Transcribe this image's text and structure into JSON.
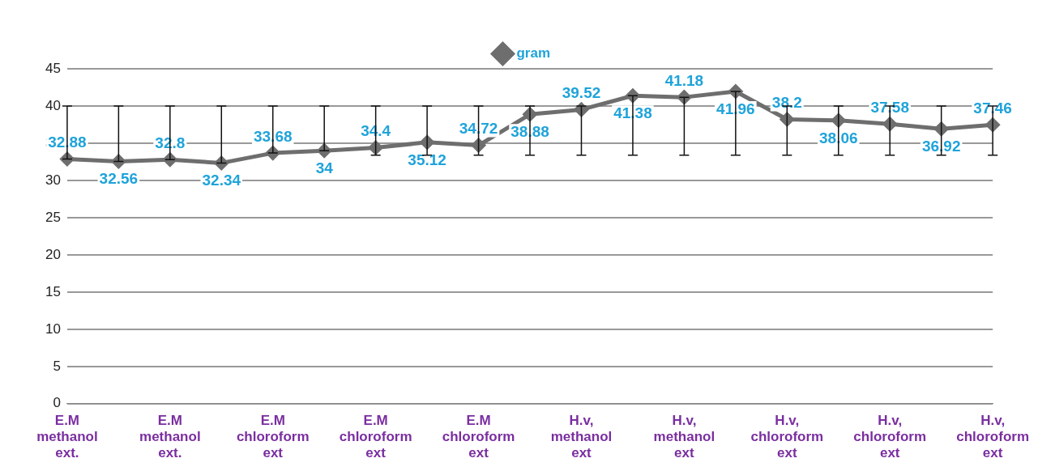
{
  "chart_data": {
    "type": "line",
    "categories": [
      "E.M methanol ext.",
      null,
      "E.M methanol ext.",
      null,
      "E.M chloroform ext",
      null,
      "E.M chloroform ext",
      null,
      "E.M chloroform ext",
      null,
      "H.v, methanol ext",
      null,
      "H.v, methanol ext",
      null,
      "H.v, chloroform ext",
      null,
      "H.v, chloroform ext",
      null,
      "H.v, chloroform ext"
    ],
    "series": [
      {
        "name": "gram",
        "color": "#6e6e6e",
        "values": [
          32.88,
          32.56,
          32.8,
          32.34,
          33.68,
          34,
          34.4,
          35.12,
          34.72,
          38.88,
          39.52,
          41.38,
          41.18,
          41.96,
          38.2,
          38.06,
          37.58,
          36.92,
          37.46
        ],
        "errors": [
          [
            32.88,
            40
          ],
          [
            32.56,
            40
          ],
          [
            32.8,
            40
          ],
          [
            32.34,
            40
          ],
          [
            33.68,
            40
          ],
          [
            34,
            40
          ],
          [
            33.4,
            40
          ],
          [
            33.4,
            40
          ],
          [
            33.4,
            40
          ],
          [
            33.4,
            40
          ],
          [
            33.4,
            40
          ],
          [
            33.4,
            41.38
          ],
          [
            33.4,
            41.18
          ],
          [
            33.4,
            41.96
          ],
          [
            33.4,
            40
          ],
          [
            33.4,
            40
          ],
          [
            33.4,
            40
          ],
          [
            33.4,
            40
          ],
          [
            33.4,
            40
          ]
        ]
      }
    ],
    "ylim": [
      0,
      45
    ],
    "yticks": [
      0,
      5,
      10,
      15,
      20,
      25,
      30,
      35,
      40,
      45
    ],
    "grid": "y",
    "legend": "top",
    "marker": "diamond",
    "line_style": "solid",
    "data_labels": true
  }
}
